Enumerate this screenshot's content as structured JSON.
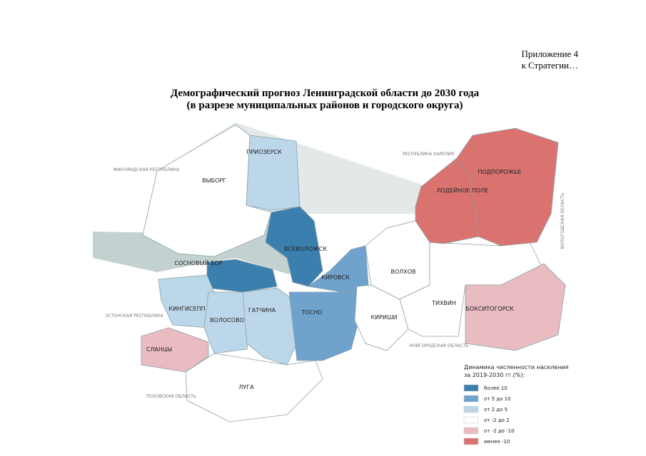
{
  "header": [
    "Приложение 4",
    "к Стратегии…"
  ],
  "title": [
    "Демографический прогноз Ленинградской области до 2030 года",
    "(в разрезе муниципальных районов и городского округа)"
  ],
  "districts": [
    {
      "label": "ПРИОЗЕРСК",
      "color": "#bcd7ea"
    },
    {
      "label": "ВЫБОРГ",
      "color": "#ffffff"
    },
    {
      "label": "ВСЕВОЛОЖСК",
      "color": "#3b7fae"
    },
    {
      "label": "СОСНОВЫЙ БОР",
      "color": "#3b7fae"
    },
    {
      "label": "КИРОВСК",
      "color": "#6fa2cd"
    },
    {
      "label": "КИНГИСЕПП",
      "color": "#bcd7ea"
    },
    {
      "label": "ВОЛОСОВО",
      "color": "#bcd7ea"
    },
    {
      "label": "ГАТЧИНА",
      "color": "#bcd7ea"
    },
    {
      "label": "ТОСНО",
      "color": "#6fa2cd"
    },
    {
      "label": "СЛАНЦЫ",
      "color": "#e9bcc1"
    },
    {
      "label": "ЛУГА",
      "color": "#ffffff"
    },
    {
      "label": "КИРИШИ",
      "color": "#ffffff"
    },
    {
      "label": "ВОЛХОВ",
      "color": "#ffffff"
    },
    {
      "label": "ТИХВИН",
      "color": "#ffffff"
    },
    {
      "label": "БОКСИТОГОРСК",
      "color": "#e9bcc1"
    },
    {
      "label": "ЛОДЕЙНОЕ ПОЛЕ",
      "color": "#da7370"
    },
    {
      "label": "ПОДПОРОЖЬЕ",
      "color": "#da7370"
    }
  ],
  "neighbors": [
    "ФИНЛЯНДСКАЯ РЕСПУБЛИКА",
    "РЕСПУБЛИКА КАРЕЛИЯ",
    "ВОЛОГОДСКАЯ ОБЛАСТЬ",
    "НОВГОРОДСКАЯ ОБЛАСТЬ",
    "ПСКОВСКАЯ ОБЛАСТЬ",
    "ЭСТОНСКАЯ РЕСПУБЛИКА"
  ],
  "legend": {
    "title": [
      "Динамика численности населения",
      "за 2019-2030 гг.(%):"
    ],
    "items": [
      {
        "label": "более 10",
        "color": "#3b7fae"
      },
      {
        "label": "от 5 до 10",
        "color": "#6fa2cd"
      },
      {
        "label": "от 2 до 5",
        "color": "#bcd7ea"
      },
      {
        "label": "от -2 до 2",
        "color": "#ffffff"
      },
      {
        "label": "от -2 до -10",
        "color": "#e9bcc1"
      },
      {
        "label": "менее -10",
        "color": "#da7370"
      }
    ]
  }
}
